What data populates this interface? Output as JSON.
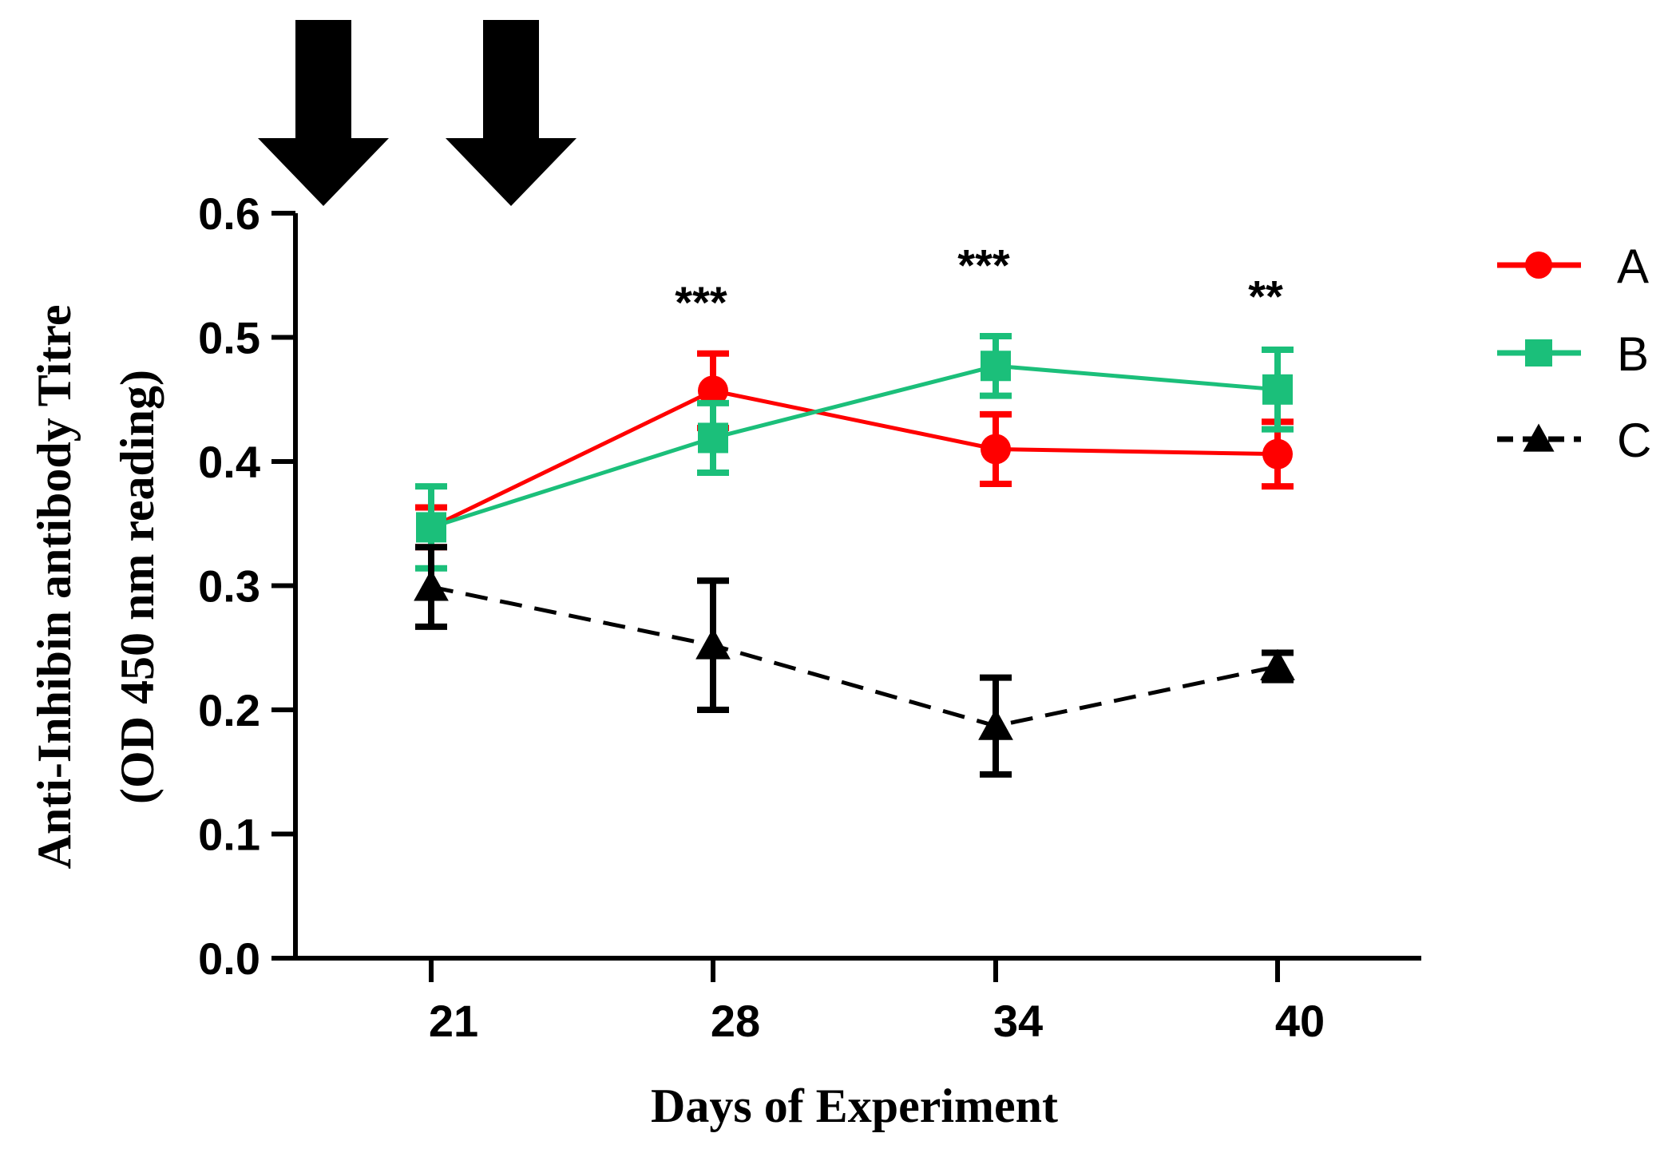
{
  "chart_data": {
    "type": "line",
    "title": "",
    "xlabel": "Days of Experiment",
    "ylabel_line1": "Anti-Inhibin antibody Titre",
    "ylabel_line2": "(OD 450 nm reading)",
    "categories": [
      "21",
      "28",
      "34",
      "40"
    ],
    "ylim": [
      0,
      0.6
    ],
    "yticks": [
      "0.0",
      "0.1",
      "0.2",
      "0.3",
      "0.4",
      "0.5",
      "0.6"
    ],
    "legend_position": "right",
    "series": [
      {
        "name": "A",
        "color": "#ff0000",
        "marker": "circle",
        "dash": "solid",
        "values": [
          0.347,
          0.457,
          0.41,
          0.406
        ],
        "errors": [
          0.016,
          0.03,
          0.028,
          0.026
        ]
      },
      {
        "name": "B",
        "color": "#1bbf7a",
        "marker": "square",
        "dash": "solid",
        "values": [
          0.347,
          0.419,
          0.477,
          0.458
        ],
        "errors": [
          0.033,
          0.028,
          0.024,
          0.032
        ]
      },
      {
        "name": "C",
        "color": "#000000",
        "marker": "triangle",
        "dash": "dashed",
        "values": [
          0.299,
          0.252,
          0.187,
          0.235
        ],
        "errors": [
          0.032,
          0.052,
          0.039,
          0.011
        ]
      }
    ],
    "annotations": [
      {
        "category_index": 1,
        "text": "***",
        "y": 0.535
      },
      {
        "category_index": 2,
        "text": "***",
        "y": 0.565
      },
      {
        "category_index": 3,
        "text": "**",
        "y": 0.54
      }
    ],
    "markers_above": [
      {
        "label": "arrow-1",
        "position": "before day 21"
      },
      {
        "label": "arrow-2",
        "position": "before day 21"
      }
    ]
  }
}
